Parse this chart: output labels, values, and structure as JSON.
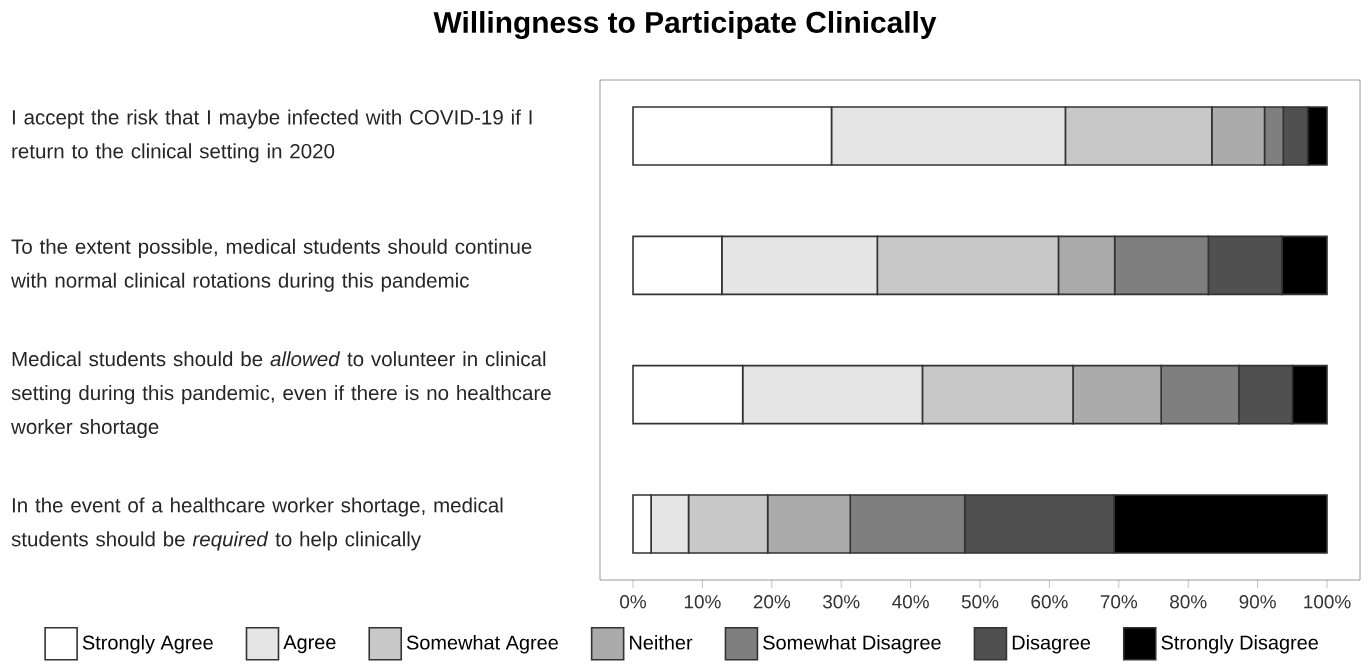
{
  "chart_data": {
    "type": "bar",
    "orientation": "horizontal",
    "stacked": true,
    "title": "Willingness to Participate Clinically",
    "categories": [
      "I accept the risk that I maybe infected with COVID-19 if I return to the clinical setting in 2020",
      "To the extent possible, medical students should continue with normal clinical rotations during this pandemic",
      "Medical students should be *allowed* to volunteer in clinical setting during this pandemic, even if there is no healthcare worker shortage",
      "In the event of a healthcare worker shortage, medical students should be *required* to help clinically"
    ],
    "series": [
      {
        "name": "Strongly Agree",
        "color": "#ffffff",
        "values": [
          28.6,
          12.8,
          15.8,
          2.6
        ]
      },
      {
        "name": "Agree",
        "color": "#e5e5e5",
        "values": [
          33.7,
          22.4,
          25.9,
          5.4
        ]
      },
      {
        "name": "Somewhat Agree",
        "color": "#c8c8c8",
        "values": [
          21.1,
          26.1,
          21.7,
          11.4
        ]
      },
      {
        "name": "Neither",
        "color": "#ababab",
        "values": [
          7.6,
          8.1,
          12.7,
          11.9
        ]
      },
      {
        "name": "Somewhat Disagree",
        "color": "#7f7f7f",
        "values": [
          2.7,
          13.5,
          11.2,
          16.5
        ]
      },
      {
        "name": "Disagree",
        "color": "#505050",
        "values": [
          3.5,
          10.6,
          7.7,
          21.5
        ]
      },
      {
        "name": "Strongly Disagree",
        "color": "#000000",
        "values": [
          2.8,
          6.5,
          5.0,
          30.7
        ]
      }
    ],
    "xlim": [
      0,
      100
    ],
    "xticks": [
      {
        "value": 0,
        "label": "0%"
      },
      {
        "value": 10,
        "label": "10%"
      },
      {
        "value": 20,
        "label": "20%"
      },
      {
        "value": 30,
        "label": "30%"
      },
      {
        "value": 40,
        "label": "40%"
      },
      {
        "value": 50,
        "label": "50%"
      },
      {
        "value": 60,
        "label": "60%"
      },
      {
        "value": 70,
        "label": "70%"
      },
      {
        "value": 80,
        "label": "80%"
      },
      {
        "value": 90,
        "label": "90%"
      },
      {
        "value": 100,
        "label": "100%"
      }
    ],
    "legend": "bottom",
    "tick_labels": "xy"
  }
}
